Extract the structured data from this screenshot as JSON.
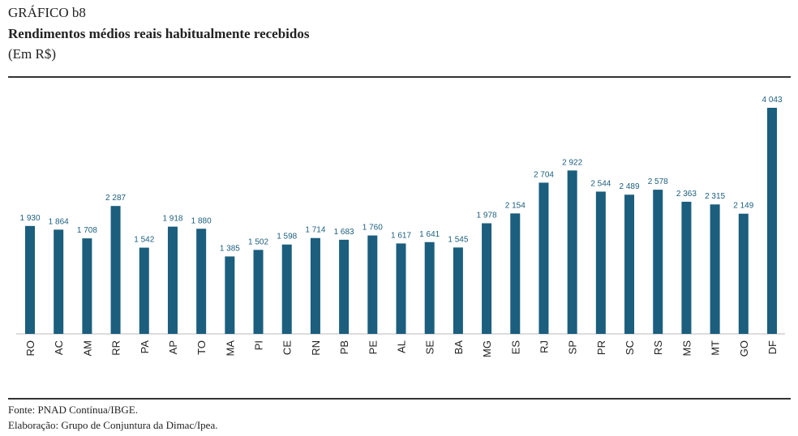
{
  "chart_data": {
    "type": "bar",
    "title": "GRÁFICO b8",
    "subtitle": "Rendimentos médios reais habitualmente recebidos",
    "unit_label": "(Em R$)",
    "categories": [
      "RO",
      "AC",
      "AM",
      "RR",
      "PA",
      "AP",
      "TO",
      "MA",
      "PI",
      "CE",
      "RN",
      "PB",
      "PE",
      "AL",
      "SE",
      "BA",
      "MG",
      "ES",
      "RJ",
      "SP",
      "PR",
      "SC",
      "RS",
      "MS",
      "MT",
      "GO",
      "DF"
    ],
    "values": [
      1930,
      1864,
      1708,
      2287,
      1542,
      1918,
      1880,
      1385,
      1502,
      1598,
      1714,
      1683,
      1760,
      1617,
      1641,
      1545,
      1978,
      2154,
      2704,
      2922,
      2544,
      2489,
      2578,
      2363,
      2315,
      2149,
      4043
    ],
    "value_labels": [
      "1 930",
      "1 864",
      "1 708",
      "2 287",
      "1 542",
      "1 918",
      "1 880",
      "1 385",
      "1 502",
      "1 598",
      "1 714",
      "1 683",
      "1 760",
      "1 617",
      "1 641",
      "1 545",
      "1 978",
      "2 154",
      "2 704",
      "2 922",
      "2 544",
      "2 489",
      "2 578",
      "2 363",
      "2 315",
      "2 149",
      "4 043"
    ],
    "color": "#1b5e7e",
    "source": "Fonte: PNAD Contínua/IBGE.",
    "note": "Elaboração: Grupo de Conjuntura da Dimac/Ipea."
  }
}
